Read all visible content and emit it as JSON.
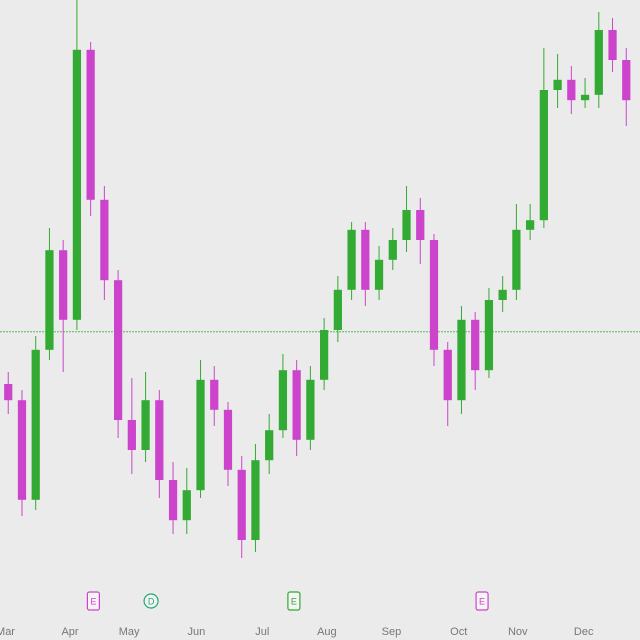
{
  "chart_data": {
    "type": "candlestick",
    "x": [
      0,
      1,
      2,
      3,
      4,
      5,
      6,
      7,
      8,
      9,
      10,
      11,
      12,
      13,
      14,
      15,
      16,
      17,
      18,
      19,
      20,
      21,
      22,
      23,
      24,
      25,
      26,
      27,
      28,
      29,
      30,
      31,
      32,
      33,
      34,
      35,
      36,
      37,
      38,
      39,
      40,
      41,
      42,
      43,
      44,
      45
    ],
    "open": [
      36,
      33.3,
      16.7,
      41.7,
      58.3,
      46.7,
      91.7,
      66.7,
      53.3,
      30,
      25,
      33.3,
      20,
      13.3,
      18.3,
      36.7,
      31.7,
      21.7,
      10,
      23.3,
      28.3,
      38.3,
      26.7,
      36.7,
      45,
      51.7,
      61.7,
      51.7,
      56.7,
      60,
      65,
      60,
      41.7,
      33.3,
      46.7,
      38.3,
      50,
      51.7,
      61.7,
      63.3,
      85,
      86.7,
      83.3,
      84.2,
      95,
      90
    ],
    "high": [
      38,
      35,
      44,
      62,
      60,
      100,
      93,
      69,
      55,
      37,
      38,
      35,
      23,
      22,
      40,
      39,
      33,
      24,
      26,
      31,
      41,
      40,
      39,
      47,
      54,
      63,
      63,
      59,
      62,
      69,
      67,
      61,
      43,
      49,
      48,
      52,
      54,
      66,
      66,
      92,
      91,
      89,
      87,
      98,
      97,
      92
    ],
    "low": [
      31,
      14,
      15,
      40,
      38,
      45,
      64,
      50,
      27,
      21,
      23,
      17,
      11,
      11,
      17,
      29,
      19,
      7,
      8,
      21,
      27,
      24,
      25,
      35,
      43,
      50,
      49,
      50,
      55,
      58,
      56,
      39,
      29,
      31,
      35,
      37,
      48,
      50,
      60,
      62,
      82,
      81,
      82,
      82,
      88,
      79
    ],
    "close": [
      33.3,
      16.7,
      41.7,
      58.3,
      46.7,
      91.7,
      66.7,
      53.3,
      30,
      25,
      33.3,
      20,
      13.3,
      18.3,
      36.7,
      31.7,
      21.7,
      10,
      23.3,
      28.3,
      38.3,
      26.7,
      36.7,
      45,
      51.7,
      61.7,
      51.7,
      56.7,
      60,
      65,
      60,
      41.7,
      33.3,
      46.7,
      38.3,
      50,
      51.7,
      61.7,
      63.3,
      85,
      86.7,
      83.3,
      84.2,
      95,
      90,
      83.3
    ],
    "up_color": "#33aa33",
    "down_color": "#cc44cc",
    "xlim": [
      -0.6,
      46
    ],
    "ylim": [
      0,
      100
    ],
    "xticks": [
      {
        "value": -0.2,
        "label": "Mar"
      },
      {
        "value": 4.5,
        "label": "Apr"
      },
      {
        "value": 8.8,
        "label": "May"
      },
      {
        "value": 13.7,
        "label": "Jun"
      },
      {
        "value": 18.5,
        "label": "Jul"
      },
      {
        "value": 23.2,
        "label": "Aug"
      },
      {
        "value": 27.9,
        "label": "Sep"
      },
      {
        "value": 32.8,
        "label": "Oct"
      },
      {
        "value": 37.1,
        "label": "Nov"
      },
      {
        "value": 41.9,
        "label": "Dec"
      }
    ],
    "reference_line": 44.7,
    "reference_color": "#55bb55",
    "events": [
      {
        "x": 6.2,
        "label": "E",
        "color": "#cc44cc"
      },
      {
        "x": 10.4,
        "label": "D",
        "color": "#22aa77"
      },
      {
        "x": 20.8,
        "label": "E",
        "color": "#33aa33"
      },
      {
        "x": 34.5,
        "label": "E",
        "color": "#cc44cc"
      }
    ]
  }
}
